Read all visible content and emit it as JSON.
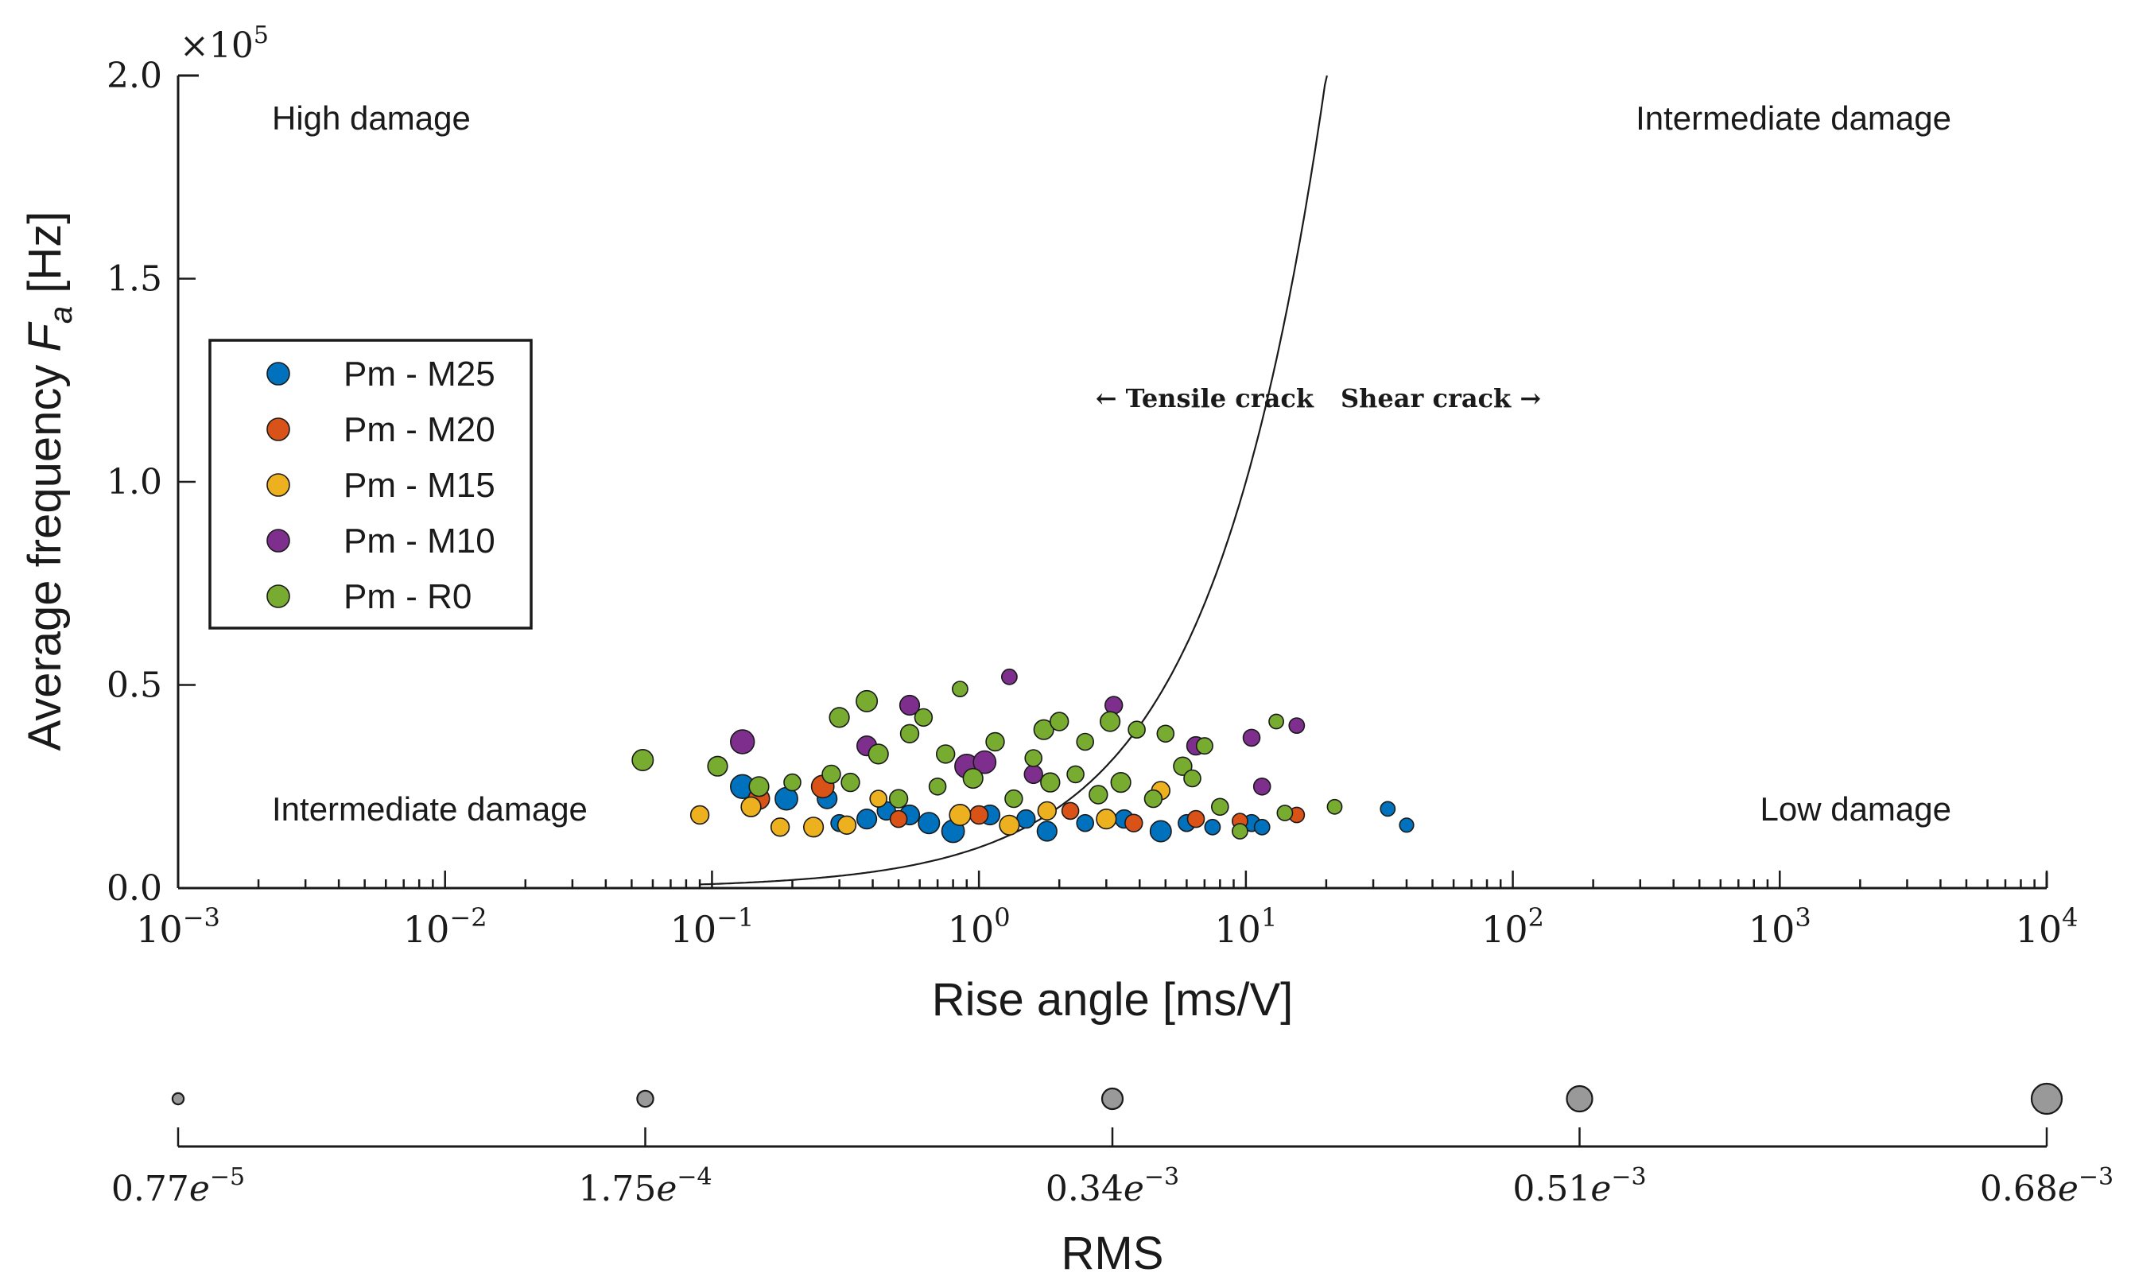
{
  "chart_data": {
    "type": "scatter",
    "x_scale": "log",
    "xlim": [
      0.001,
      10000
    ],
    "ylim": [
      0,
      200000
    ],
    "y_multiplier_label": "×10",
    "y_multiplier_exponent": "5",
    "xlabel": "Rise angle [ms/V]",
    "ylabel": "Average frequency",
    "ylabel_symbol": "F",
    "ylabel_subscript": "a",
    "ylabel_unit": "[Hz]",
    "x_tick_base": "10",
    "x_ticks": [
      {
        "value": 0.001,
        "exp": "−3"
      },
      {
        "value": 0.01,
        "exp": "−2"
      },
      {
        "value": 0.1,
        "exp": "−1"
      },
      {
        "value": 1,
        "exp": "0"
      },
      {
        "value": 10,
        "exp": "1"
      },
      {
        "value": 100,
        "exp": "2"
      },
      {
        "value": 1000,
        "exp": "3"
      },
      {
        "value": 10000,
        "exp": "4"
      }
    ],
    "y_ticks": [
      {
        "value": 0,
        "label": "0.0"
      },
      {
        "value": 50000,
        "label": "0.5"
      },
      {
        "value": 100000,
        "label": "1.0"
      },
      {
        "value": 150000,
        "label": "1.5"
      },
      {
        "value": 200000,
        "label": "2.0"
      }
    ],
    "region_labels": [
      {
        "text": "High damage",
        "position": "top-left"
      },
      {
        "text": "Intermediate damage",
        "position": "top-right"
      },
      {
        "text": "Intermediate damage",
        "position": "bottom-left"
      },
      {
        "text": "Low damage",
        "position": "bottom-right"
      }
    ],
    "boundary_curve": {
      "description": "Tensile / shear crack classification curve",
      "points": [
        [
          0.1,
          600
        ],
        [
          0.2,
          2400
        ],
        [
          0.5,
          5000
        ],
        [
          1,
          10000
        ],
        [
          2,
          20000
        ],
        [
          5,
          50000
        ],
        [
          10,
          100000
        ],
        [
          20,
          200000
        ]
      ]
    },
    "crack_labels": {
      "left": "← Tensile crack",
      "right": "Shear crack →"
    },
    "legend_position": "center-left",
    "series": [
      {
        "name": "Pm - M25",
        "color": "#0072BD",
        "points": [
          {
            "x": 0.13,
            "y": 25000,
            "rms": 0.00045
          },
          {
            "x": 0.19,
            "y": 22000,
            "rms": 0.0004
          },
          {
            "x": 0.27,
            "y": 22000,
            "rms": 0.0003
          },
          {
            "x": 0.3,
            "y": 16000,
            "rms": 0.0002
          },
          {
            "x": 0.38,
            "y": 17000,
            "rms": 0.0003
          },
          {
            "x": 0.45,
            "y": 19000,
            "rms": 0.00025
          },
          {
            "x": 0.55,
            "y": 18000,
            "rms": 0.0003
          },
          {
            "x": 0.65,
            "y": 16000,
            "rms": 0.00035
          },
          {
            "x": 0.8,
            "y": 14000,
            "rms": 0.0004
          },
          {
            "x": 1.1,
            "y": 18000,
            "rms": 0.0003
          },
          {
            "x": 1.5,
            "y": 17000,
            "rms": 0.00025
          },
          {
            "x": 1.8,
            "y": 14000,
            "rms": 0.0003
          },
          {
            "x": 2.5,
            "y": 16000,
            "rms": 0.0002
          },
          {
            "x": 3.5,
            "y": 17000,
            "rms": 0.00025
          },
          {
            "x": 4.8,
            "y": 14000,
            "rms": 0.00035
          },
          {
            "x": 6.0,
            "y": 16000,
            "rms": 0.0002
          },
          {
            "x": 7.5,
            "y": 15000,
            "rms": 0.00015
          },
          {
            "x": 10.5,
            "y": 16000,
            "rms": 0.0002
          },
          {
            "x": 11.5,
            "y": 15000,
            "rms": 0.00015
          },
          {
            "x": 34,
            "y": 19500,
            "rms": 0.00012
          },
          {
            "x": 40,
            "y": 15500,
            "rms": 0.0001
          }
        ]
      },
      {
        "name": "Pm - M20",
        "color": "#D95319",
        "points": [
          {
            "x": 0.15,
            "y": 22000,
            "rms": 0.00035
          },
          {
            "x": 0.26,
            "y": 25000,
            "rms": 0.0004
          },
          {
            "x": 0.5,
            "y": 17000,
            "rms": 0.0002
          },
          {
            "x": 1.0,
            "y": 18000,
            "rms": 0.00025
          },
          {
            "x": 2.2,
            "y": 19000,
            "rms": 0.0002
          },
          {
            "x": 3.8,
            "y": 16000,
            "rms": 0.00022
          },
          {
            "x": 6.5,
            "y": 17000,
            "rms": 0.0002
          },
          {
            "x": 9.5,
            "y": 16500,
            "rms": 0.00015
          },
          {
            "x": 15.5,
            "y": 18000,
            "rms": 0.00015
          }
        ]
      },
      {
        "name": "Pm - M15",
        "color": "#EDB120",
        "points": [
          {
            "x": 0.09,
            "y": 18000,
            "rms": 0.00025
          },
          {
            "x": 0.14,
            "y": 20000,
            "rms": 0.0003
          },
          {
            "x": 0.18,
            "y": 15000,
            "rms": 0.00025
          },
          {
            "x": 0.24,
            "y": 15000,
            "rms": 0.0003
          },
          {
            "x": 0.32,
            "y": 15500,
            "rms": 0.00025
          },
          {
            "x": 0.42,
            "y": 22000,
            "rms": 0.0002
          },
          {
            "x": 0.85,
            "y": 18000,
            "rms": 0.00035
          },
          {
            "x": 1.3,
            "y": 15500,
            "rms": 0.0003
          },
          {
            "x": 1.8,
            "y": 19000,
            "rms": 0.00025
          },
          {
            "x": 3.0,
            "y": 17000,
            "rms": 0.0003
          },
          {
            "x": 4.8,
            "y": 24000,
            "rms": 0.00025
          }
        ]
      },
      {
        "name": "Pm - M10",
        "color": "#7E2F8E",
        "points": [
          {
            "x": 0.13,
            "y": 36000,
            "rms": 0.00045
          },
          {
            "x": 0.38,
            "y": 35000,
            "rms": 0.0003
          },
          {
            "x": 0.55,
            "y": 45000,
            "rms": 0.0003
          },
          {
            "x": 0.9,
            "y": 30000,
            "rms": 0.00045
          },
          {
            "x": 1.05,
            "y": 31000,
            "rms": 0.0004
          },
          {
            "x": 1.3,
            "y": 52000,
            "rms": 0.00015
          },
          {
            "x": 1.6,
            "y": 28000,
            "rms": 0.00025
          },
          {
            "x": 3.2,
            "y": 45000,
            "rms": 0.00022
          },
          {
            "x": 6.5,
            "y": 35000,
            "rms": 0.00025
          },
          {
            "x": 10.5,
            "y": 37000,
            "rms": 0.0002
          },
          {
            "x": 11.5,
            "y": 25000,
            "rms": 0.0002
          },
          {
            "x": 15.5,
            "y": 40000,
            "rms": 0.00015
          }
        ]
      },
      {
        "name": "Pm - R0",
        "color": "#77AC30",
        "points": [
          {
            "x": 0.055,
            "y": 31500,
            "rms": 0.00035
          },
          {
            "x": 0.105,
            "y": 30000,
            "rms": 0.0003
          },
          {
            "x": 0.15,
            "y": 25000,
            "rms": 0.0003
          },
          {
            "x": 0.2,
            "y": 26000,
            "rms": 0.0002
          },
          {
            "x": 0.28,
            "y": 28000,
            "rms": 0.00025
          },
          {
            "x": 0.3,
            "y": 42000,
            "rms": 0.0003
          },
          {
            "x": 0.33,
            "y": 26000,
            "rms": 0.00025
          },
          {
            "x": 0.38,
            "y": 46000,
            "rms": 0.00035
          },
          {
            "x": 0.42,
            "y": 33000,
            "rms": 0.0003
          },
          {
            "x": 0.5,
            "y": 22000,
            "rms": 0.00025
          },
          {
            "x": 0.55,
            "y": 38000,
            "rms": 0.00025
          },
          {
            "x": 0.62,
            "y": 42000,
            "rms": 0.00022
          },
          {
            "x": 0.7,
            "y": 25000,
            "rms": 0.0002
          },
          {
            "x": 0.75,
            "y": 33000,
            "rms": 0.00025
          },
          {
            "x": 0.85,
            "y": 49000,
            "rms": 0.00015
          },
          {
            "x": 0.95,
            "y": 27000,
            "rms": 0.0003
          },
          {
            "x": 1.15,
            "y": 36000,
            "rms": 0.00025
          },
          {
            "x": 1.35,
            "y": 22000,
            "rms": 0.00022
          },
          {
            "x": 1.6,
            "y": 32000,
            "rms": 0.0002
          },
          {
            "x": 1.75,
            "y": 39000,
            "rms": 0.0003
          },
          {
            "x": 1.85,
            "y": 26000,
            "rms": 0.00028
          },
          {
            "x": 2.0,
            "y": 41000,
            "rms": 0.00025
          },
          {
            "x": 2.3,
            "y": 28000,
            "rms": 0.0002
          },
          {
            "x": 2.5,
            "y": 36000,
            "rms": 0.0002
          },
          {
            "x": 2.8,
            "y": 23000,
            "rms": 0.00025
          },
          {
            "x": 3.1,
            "y": 41000,
            "rms": 0.0003
          },
          {
            "x": 3.4,
            "y": 26000,
            "rms": 0.0003
          },
          {
            "x": 3.9,
            "y": 39000,
            "rms": 0.0002
          },
          {
            "x": 4.5,
            "y": 22000,
            "rms": 0.00022
          },
          {
            "x": 5.0,
            "y": 38000,
            "rms": 0.0002
          },
          {
            "x": 5.8,
            "y": 30000,
            "rms": 0.00025
          },
          {
            "x": 6.3,
            "y": 27000,
            "rms": 0.0002
          },
          {
            "x": 7.0,
            "y": 35000,
            "rms": 0.00018
          },
          {
            "x": 8.0,
            "y": 20000,
            "rms": 0.0002
          },
          {
            "x": 9.5,
            "y": 14000,
            "rms": 0.00015
          },
          {
            "x": 13.0,
            "y": 41000,
            "rms": 0.00012
          },
          {
            "x": 14.0,
            "y": 18500,
            "rms": 0.00015
          },
          {
            "x": 21.5,
            "y": 20000,
            "rms": 0.00012
          }
        ]
      }
    ],
    "size_legend": {
      "title": "RMS",
      "entries": [
        {
          "rms": 7.7e-06,
          "mantissa": "0.77",
          "exp": "−5"
        },
        {
          "rms": 0.000175,
          "mantissa": "1.75",
          "exp": "−4"
        },
        {
          "rms": 0.00034,
          "mantissa": "0.34",
          "exp": "−3"
        },
        {
          "rms": 0.00051,
          "mantissa": "0.51",
          "exp": "−3"
        },
        {
          "rms": 0.00068,
          "mantissa": "0.68",
          "exp": "−3"
        }
      ]
    }
  }
}
